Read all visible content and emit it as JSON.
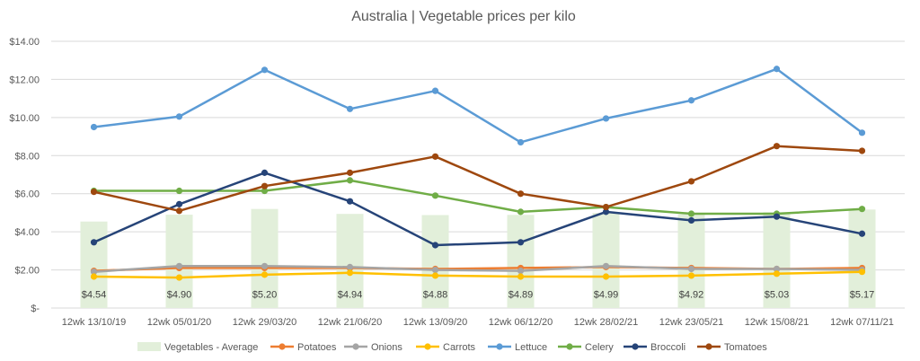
{
  "chart_data": {
    "type": "line",
    "title": "Australia | Vegetable prices per kilo",
    "xlabel": "",
    "ylabel": "",
    "ylim": [
      0,
      14
    ],
    "ytick_values": [
      0,
      2,
      4,
      6,
      8,
      10,
      12,
      14
    ],
    "ytick_labels": [
      "$-",
      "$2.00",
      "$4.00",
      "$6.00",
      "$8.00",
      "$10.00",
      "$12.00",
      "$14.00"
    ],
    "grid": true,
    "legend_position": "bottom",
    "categories": [
      "12wk 13/10/19",
      "12wk 05/01/20",
      "12wk 29/03/20",
      "12wk 21/06/20",
      "12wk 13/09/20",
      "12wk 06/12/20",
      "12wk 28/02/21",
      "12wk 23/05/21",
      "12wk 15/08/21",
      "12wk 07/11/21"
    ],
    "bar_series": {
      "name": "Vegetables - Average",
      "color": "#e2efda",
      "values": [
        4.54,
        4.9,
        5.2,
        4.94,
        4.88,
        4.89,
        4.99,
        4.92,
        5.03,
        5.17
      ],
      "labels": [
        "$4.54",
        "$4.90",
        "$5.20",
        "$4.94",
        "$4.88",
        "$4.89",
        "$4.99",
        "$4.92",
        "$5.03",
        "$5.17"
      ]
    },
    "series": [
      {
        "name": "Potatoes",
        "color": "#ed7d31",
        "values": [
          1.95,
          2.1,
          2.1,
          2.1,
          2.05,
          2.1,
          2.15,
          2.1,
          2.05,
          2.1
        ]
      },
      {
        "name": "Onions",
        "color": "#a5a5a5",
        "values": [
          1.9,
          2.2,
          2.2,
          2.15,
          2.0,
          1.95,
          2.2,
          2.05,
          2.05,
          2.0
        ]
      },
      {
        "name": "Carrots",
        "color": "#ffc000",
        "values": [
          1.65,
          1.6,
          1.75,
          1.85,
          1.7,
          1.65,
          1.65,
          1.7,
          1.8,
          1.9
        ]
      },
      {
        "name": "Lettuce",
        "color": "#5b9bd5",
        "values": [
          9.5,
          10.05,
          12.5,
          10.45,
          11.4,
          8.7,
          9.95,
          10.9,
          12.55,
          9.2
        ]
      },
      {
        "name": "Celery",
        "color": "#70ad47",
        "values": [
          6.15,
          6.15,
          6.15,
          6.7,
          5.9,
          5.05,
          5.3,
          4.95,
          4.95,
          5.2
        ]
      },
      {
        "name": "Broccoli",
        "color": "#264478",
        "values": [
          3.45,
          5.45,
          7.1,
          5.6,
          3.3,
          3.45,
          5.05,
          4.6,
          4.8,
          3.9
        ]
      },
      {
        "name": "Tomatoes",
        "color": "#9e480e",
        "values": [
          6.1,
          5.1,
          6.4,
          7.1,
          7.95,
          6.0,
          5.3,
          6.65,
          8.5,
          8.25
        ]
      }
    ]
  }
}
